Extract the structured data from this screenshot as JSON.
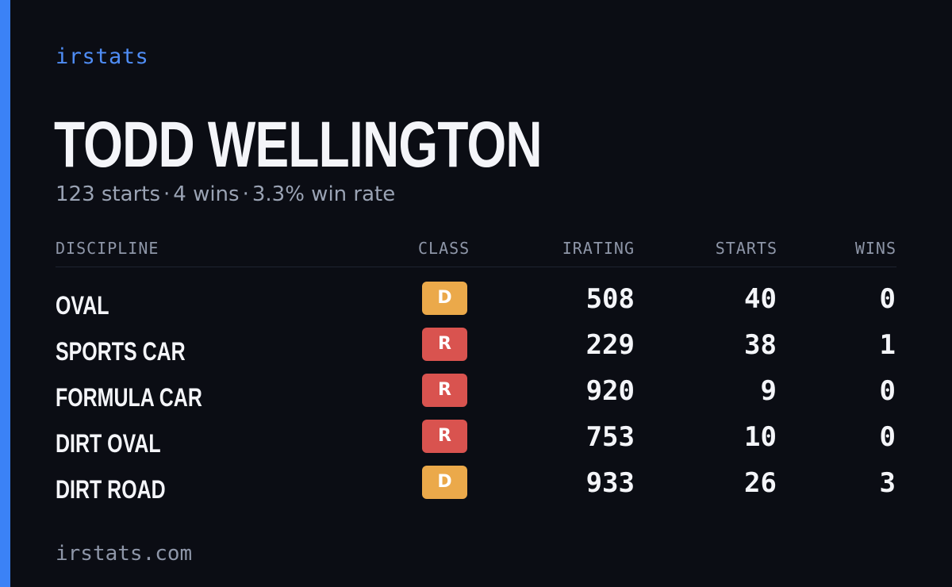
{
  "brand": "irstats",
  "driver": {
    "name": "TODD WELLINGTON",
    "starts_text": "123 starts",
    "wins_text": "4 wins",
    "win_rate_text": "3.3% win rate",
    "separator": "·"
  },
  "table": {
    "headers": {
      "discipline": "DISCIPLINE",
      "class": "CLASS",
      "irating": "IRATING",
      "starts": "STARTS",
      "wins": "WINS"
    },
    "rows": [
      {
        "discipline": "OVAL",
        "class": "D",
        "irating": "508",
        "starts": "40",
        "wins": "0"
      },
      {
        "discipline": "SPORTS CAR",
        "class": "R",
        "irating": "229",
        "starts": "38",
        "wins": "1"
      },
      {
        "discipline": "FORMULA CAR",
        "class": "R",
        "irating": "920",
        "starts": "9",
        "wins": "0"
      },
      {
        "discipline": "DIRT OVAL",
        "class": "R",
        "irating": "753",
        "starts": "10",
        "wins": "0"
      },
      {
        "discipline": "DIRT ROAD",
        "class": "D",
        "irating": "933",
        "starts": "26",
        "wins": "3"
      }
    ]
  },
  "class_colors": {
    "D": "#eba94a",
    "R": "#d9534f"
  },
  "colors": {
    "accent": "#3b82f6",
    "background": "#0b0d14"
  },
  "footer": "irstats.com"
}
